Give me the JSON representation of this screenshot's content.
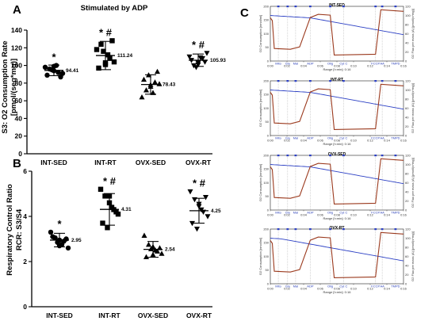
{
  "chart_data": [
    {
      "panel": "A",
      "type": "scatter",
      "title": "Stimulated by ADP",
      "ylabel": "S3: O2 Consumption Rate",
      "ylabel_line2": "[pmol/(seg*mg)]",
      "ylim": [
        0,
        140
      ],
      "yticks": [
        0,
        20,
        40,
        60,
        80,
        100,
        120,
        140
      ],
      "categories": [
        "INT-SED",
        "INT-RT",
        "OVX-SED",
        "OVX-RT"
      ],
      "markers": [
        "circle",
        "square",
        "triangle",
        "triangle-down"
      ],
      "means": [
        94.41,
        111.24,
        78.43,
        105.93
      ],
      "mean_labels": [
        "94.41",
        "111.24",
        "78.43",
        "105.93"
      ],
      "sd": [
        6,
        16,
        11,
        7
      ],
      "significance": [
        "*",
        "* #",
        "",
        "* #"
      ],
      "points": [
        [
          98,
          96,
          94,
          92,
          91,
          89,
          95,
          100,
          87,
          99
        ],
        [
          118,
          124,
          101,
          108,
          104,
          97,
          116,
          112,
          128,
          103
        ],
        [
          64,
          72,
          76,
          81,
          79,
          84,
          89,
          69,
          93,
          78
        ],
        [
          110,
          100,
          103,
          108,
          114,
          106,
          98,
          109,
          104,
          101
        ]
      ]
    },
    {
      "panel": "B",
      "type": "scatter",
      "ylabel": "Respiratory Control Ratio",
      "ylabel_line2": "RCR: S3/S4",
      "ylim": [
        0,
        6
      ],
      "yticks": [
        0,
        2,
        4,
        6
      ],
      "categories": [
        "INT-SED",
        "INT-RT",
        "OVX-SED",
        "OVX-RT"
      ],
      "markers": [
        "circle",
        "square",
        "triangle",
        "triangle-down"
      ],
      "means": [
        2.95,
        4.31,
        2.54,
        4.25
      ],
      "mean_labels": [
        "2.95",
        "4.31",
        "2.54",
        "4.25"
      ],
      "sd": [
        0.3,
        0.7,
        0.35,
        0.55
      ],
      "significance": [
        "*",
        "* #",
        "",
        "* #"
      ],
      "points": [
        [
          3.3,
          3.05,
          2.95,
          2.9,
          2.6,
          3.1,
          2.85,
          2.75,
          3.0,
          2.7
        ],
        [
          5.2,
          4.9,
          4.6,
          4.3,
          4.1,
          3.7,
          3.5,
          4.4,
          4.2,
          4.9
        ],
        [
          3.15,
          2.75,
          2.65,
          2.45,
          2.35,
          2.2,
          2.55,
          2.5,
          2.6,
          2.3
        ],
        [
          5.1,
          4.75,
          4.55,
          4.2,
          4.0,
          3.7,
          3.45,
          4.3,
          4.85,
          4.45
        ]
      ]
    }
  ],
  "panel_c": {
    "letter": "C",
    "traces": [
      {
        "title": "INT-SED"
      },
      {
        "title": "INT-RT"
      },
      {
        "title": "OVX-SED"
      },
      {
        "title": "OVX-RT"
      }
    ],
    "left_axis_label": "O2 Consumption [nmol/ml]",
    "right_axis_label": "O2 Flux per mass (A) [pmol/(s*mg)]",
    "x_axis_label": "Range [h:min]: 0:16",
    "xticks": [
      "0:00",
      "0:02",
      "0:04",
      "0:06",
      "0:08",
      "0:10",
      "0:12",
      "0:14",
      "0:16"
    ],
    "left_yticks": [
      "0",
      "50",
      "100",
      "150",
      "200"
    ],
    "right_yticks": [
      "0",
      "20",
      "40",
      "60",
      "80",
      "100",
      "120"
    ],
    "event_labels": [
      "Mito",
      "Glu",
      "Mal",
      "ADP",
      "Olig",
      "Cyt C",
      "FCCP",
      "AA",
      "TMPD"
    ],
    "colors": {
      "o2_concentration": "#2b3fc4",
      "o2_flux": "#9b3a1e",
      "events": "#2b3fc4"
    }
  }
}
